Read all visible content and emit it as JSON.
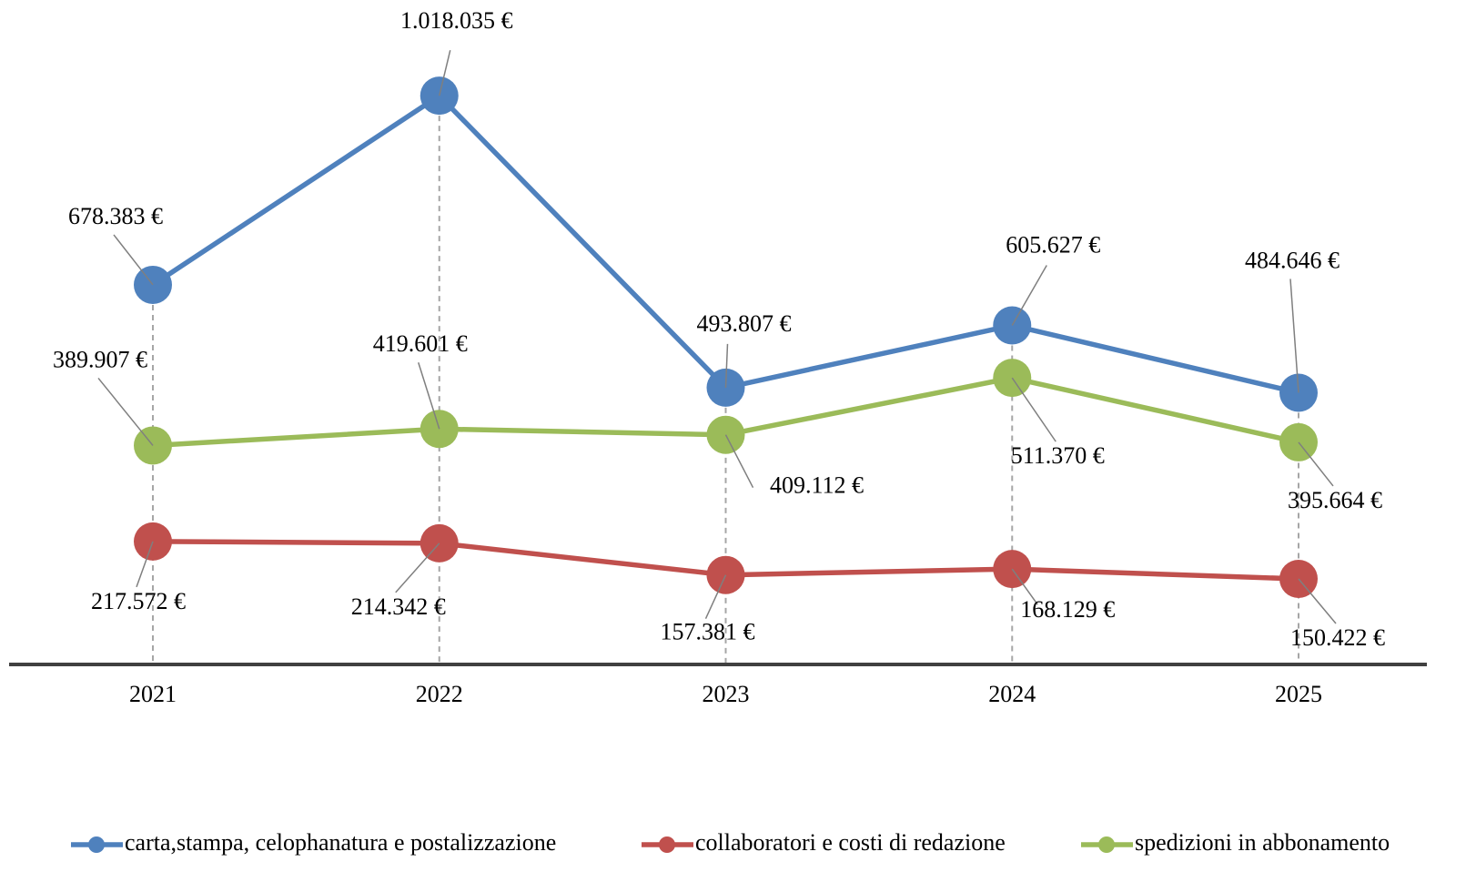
{
  "chart_data": {
    "type": "line",
    "categories": [
      "2021",
      "2022",
      "2023",
      "2024",
      "2025"
    ],
    "series": [
      {
        "name": "carta,stampa, celophanatura e postalizzazione",
        "color": "#4f81bd",
        "values": [
          678383,
          1018035,
          493807,
          605627,
          484646
        ],
        "value_labels": [
          "678.383 €",
          "1.018.035 €",
          "493.807 €",
          "605.627 €",
          "484.646 €"
        ]
      },
      {
        "name": "collaboratori e costi di redazione",
        "color": "#c0504d",
        "values": [
          217572,
          214342,
          157381,
          168129,
          150422
        ],
        "value_labels": [
          "217.572 €",
          "214.342 €",
          "157.381 €",
          "168.129 €",
          "150.422 €"
        ]
      },
      {
        "name": "spedizioni in abbonamento",
        "color": "#9bbb59",
        "values": [
          389907,
          419601,
          409112,
          511370,
          395664
        ],
        "value_labels": [
          "389.907 €",
          "419.601 €",
          "409.112 €",
          "511.370 €",
          "395.664 €"
        ]
      }
    ],
    "ylim": [
      0,
      1100000
    ]
  }
}
